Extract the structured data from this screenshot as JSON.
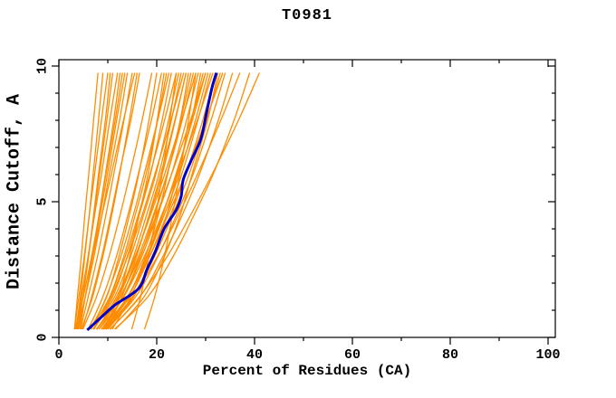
{
  "chart_data": {
    "type": "line",
    "title": "T0981",
    "xlabel": "Percent of Residues (CA)",
    "ylabel": "Distance Cutoff, A",
    "xlim": [
      0,
      101.5
    ],
    "ylim": [
      0,
      10.25
    ],
    "x_major_ticks": [
      0,
      20,
      40,
      60,
      80,
      100
    ],
    "x_minor_step": 10,
    "y_major_ticks": [
      0,
      5,
      10
    ],
    "y_minor_step": 1,
    "grid": false,
    "legend": "none",
    "colors": {
      "model_curves": "#ff8c00",
      "highlight_curve": "#0000cc",
      "axis": "#000000",
      "background": "#ffffff"
    },
    "y_grid": [
      0.3,
      1.5,
      3,
      4.5,
      6,
      8,
      9.75
    ],
    "model_curves": [
      [
        3.2,
        3.8,
        4.6,
        5.3,
        6.1,
        7.1,
        8.0
      ],
      [
        3.5,
        4.4,
        5.3,
        6.2,
        7.0,
        8.1,
        9.0
      ],
      [
        3.2,
        4.1,
        5.2,
        6.2,
        7.3,
        8.7,
        10.0
      ],
      [
        3.9,
        4.9,
        6.1,
        7.1,
        8.1,
        9.5,
        10.5
      ],
      [
        3.4,
        4.6,
        6.0,
        7.2,
        8.3,
        9.8,
        11.0
      ],
      [
        3.6,
        4.6,
        6.0,
        7.3,
        8.7,
        10.4,
        12.0
      ],
      [
        4.0,
        5.4,
        6.9,
        8.2,
        9.5,
        11.2,
        12.5
      ],
      [
        3.5,
        5.0,
        6.7,
        8.2,
        9.6,
        11.5,
        13.0
      ],
      [
        4.3,
        5.4,
        6.9,
        8.4,
        9.9,
        11.8,
        13.5
      ],
      [
        3.7,
        5.4,
        7.2,
        8.8,
        10.3,
        12.4,
        14.0
      ],
      [
        4.4,
        6.0,
        7.9,
        9.6,
        11.2,
        13.3,
        15.0
      ],
      [
        3.4,
        4.9,
        6.9,
        8.8,
        10.7,
        13.2,
        15.5
      ],
      [
        4.8,
        6.7,
        8.8,
        10.6,
        12.3,
        14.7,
        16.5
      ],
      [
        4.6,
        6.9,
        9.0,
        10.8,
        12.4,
        14.4,
        16.0
      ],
      [
        4.9,
        7.7,
        10.3,
        12.5,
        14.5,
        17.0,
        19.0
      ],
      [
        6.4,
        9.8,
        12.3,
        14.4,
        16.3,
        18.4,
        20.0
      ],
      [
        6.0,
        9.0,
        11.8,
        14.1,
        16.2,
        18.9,
        21.0
      ],
      [
        6.5,
        10.4,
        13.3,
        15.6,
        17.8,
        20.2,
        22.0
      ],
      [
        6.6,
        9.7,
        12.7,
        15.2,
        17.4,
        20.2,
        22.5
      ],
      [
        7.0,
        11.0,
        14.0,
        16.4,
        18.7,
        21.1,
        23.0
      ],
      [
        7.2,
        10.5,
        13.6,
        16.2,
        18.6,
        21.6,
        24.0
      ],
      [
        7.1,
        11.4,
        14.7,
        17.3,
        19.8,
        22.4,
        24.5
      ],
      [
        7.8,
        12.1,
        15.3,
        17.9,
        20.4,
        23.0,
        25.0
      ],
      [
        7.0,
        10.7,
        14.1,
        17.0,
        19.6,
        22.9,
        25.5
      ],
      [
        7.7,
        12.2,
        15.7,
        18.5,
        21.1,
        23.8,
        26.0
      ],
      [
        9.5,
        14.2,
        17.7,
        20.3,
        22.2,
        24.8,
        26.5
      ],
      [
        8.7,
        13.2,
        16.7,
        19.5,
        22.1,
        24.9,
        27.0
      ],
      [
        7.7,
        12.6,
        16.3,
        19.3,
        22.1,
        25.2,
        27.5
      ],
      [
        7.8,
        11.8,
        15.6,
        18.7,
        21.6,
        25.1,
        28.0
      ],
      [
        8.2,
        13.2,
        17.0,
        20.1,
        23.0,
        26.1,
        28.5
      ],
      [
        10.0,
        15.3,
        19.2,
        22.0,
        24.2,
        27.1,
        29.0
      ],
      [
        9.1,
        14.1,
        18.0,
        21.1,
        24.0,
        27.1,
        29.5
      ],
      [
        8.2,
        12.5,
        16.6,
        19.9,
        23.0,
        26.9,
        30.0
      ],
      [
        8.7,
        14.1,
        18.2,
        21.5,
        24.6,
        27.9,
        30.5
      ],
      [
        9.1,
        14.5,
        18.6,
        22.0,
        25.1,
        28.4,
        31.0
      ],
      [
        8.8,
        13.3,
        17.5,
        21.0,
        24.3,
        28.3,
        31.5
      ],
      [
        9.6,
        15.1,
        19.3,
        22.8,
        25.9,
        29.4,
        32.0
      ],
      [
        11.6,
        17.4,
        21.6,
        24.8,
        27.2,
        30.4,
        32.5
      ],
      [
        9.2,
        15.1,
        19.6,
        23.2,
        26.6,
        30.2,
        33.0
      ],
      [
        9.2,
        14.0,
        18.6,
        22.3,
        25.8,
        30.0,
        33.5
      ],
      [
        9.7,
        15.7,
        20.3,
        24.0,
        27.4,
        31.1,
        34.0
      ],
      [
        10.4,
        16.6,
        21.3,
        25.2,
        28.7,
        32.6,
        35.5
      ],
      [
        9.7,
        15.1,
        20.2,
        24.4,
        28.3,
        33.1,
        37.0
      ],
      [
        11.4,
        18.2,
        23.4,
        27.6,
        31.5,
        35.8,
        39.0
      ],
      [
        10.5,
        16.5,
        22.2,
        26.9,
        31.3,
        36.7,
        41.0
      ],
      [
        9.6,
        12.9,
        15.9,
        18.4,
        20.8,
        23.7,
        26.0
      ],
      [
        10.9,
        14.7,
        18.2,
        21.2,
        23.9,
        27.3,
        30.0
      ],
      [
        9.2,
        12.2,
        14.5,
        16.4,
        18.2,
        20.1,
        21.5
      ],
      [
        14.9,
        16.7,
        18.4,
        19.8,
        21.1,
        22.7,
        24.0
      ],
      [
        17.5,
        19.6,
        21.6,
        23.2,
        24.7,
        26.5,
        28.0
      ]
    ],
    "highlight_curve": {
      "y": [
        0.27,
        0.8,
        1.2,
        1.8,
        2.5,
        3.2,
        4.0,
        4.7,
        5.2,
        5.8,
        6.5,
        7.3,
        8.3,
        9.2,
        9.75
      ],
      "x": [
        5.8,
        9.0,
        11.5,
        16.3,
        18.0,
        19.8,
        21.5,
        24.0,
        25.0,
        25.4,
        27.0,
        29.0,
        30.2,
        31.3,
        32.2
      ]
    }
  }
}
